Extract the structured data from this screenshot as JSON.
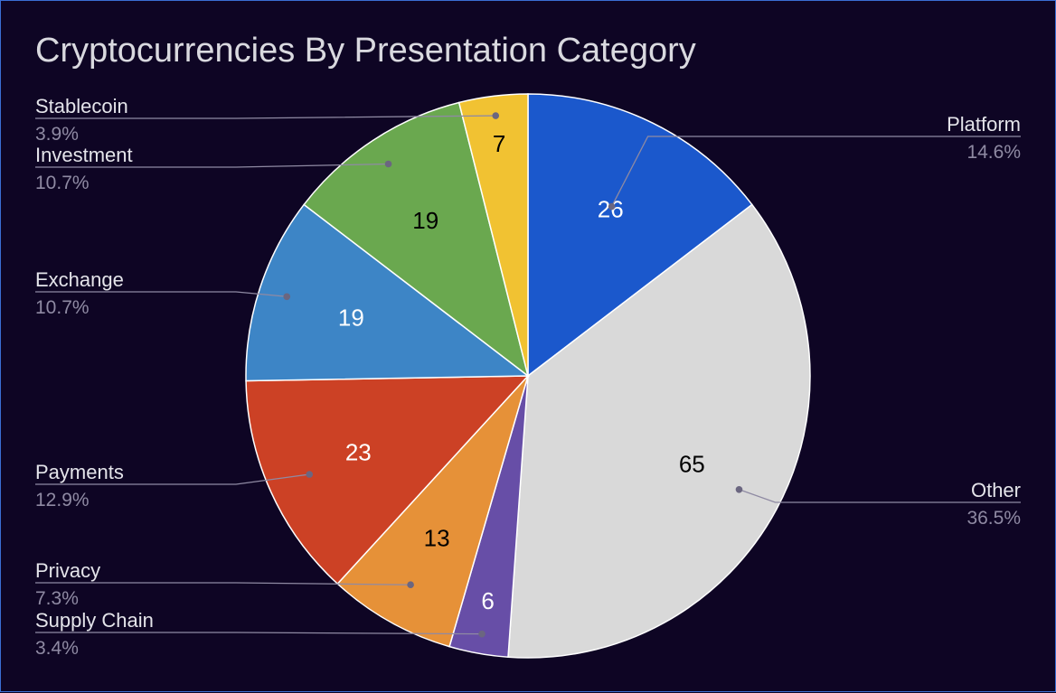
{
  "chart_data": {
    "type": "pie",
    "title": "Cryptocurrencies By Presentation Category",
    "start_angle_deg": 0,
    "direction": "clockwise",
    "slices": [
      {
        "label": "Platform",
        "value": 26,
        "percent": "14.6%",
        "color": "#1b58cc",
        "text_color": "#ffffff"
      },
      {
        "label": "Other",
        "value": 65,
        "percent": "36.5%",
        "color": "#d9d9d9",
        "text_color": "#000000"
      },
      {
        "label": "Supply Chain",
        "value": 6,
        "percent": "3.4%",
        "color": "#674ea7",
        "text_color": "#ffffff"
      },
      {
        "label": "Privacy",
        "value": 13,
        "percent": "7.3%",
        "color": "#e69138",
        "text_color": "#000000"
      },
      {
        "label": "Payments",
        "value": 23,
        "percent": "12.9%",
        "color": "#cc4125",
        "text_color": "#ffffff"
      },
      {
        "label": "Exchange",
        "value": 19,
        "percent": "10.7%",
        "color": "#3d85c6",
        "text_color": "#ffffff"
      },
      {
        "label": "Investment",
        "value": 19,
        "percent": "10.7%",
        "color": "#6aa84f",
        "text_color": "#000000"
      },
      {
        "label": "Stablecoin",
        "value": 7,
        "percent": "3.9%",
        "color": "#f1c232",
        "text_color": "#000000"
      }
    ]
  }
}
